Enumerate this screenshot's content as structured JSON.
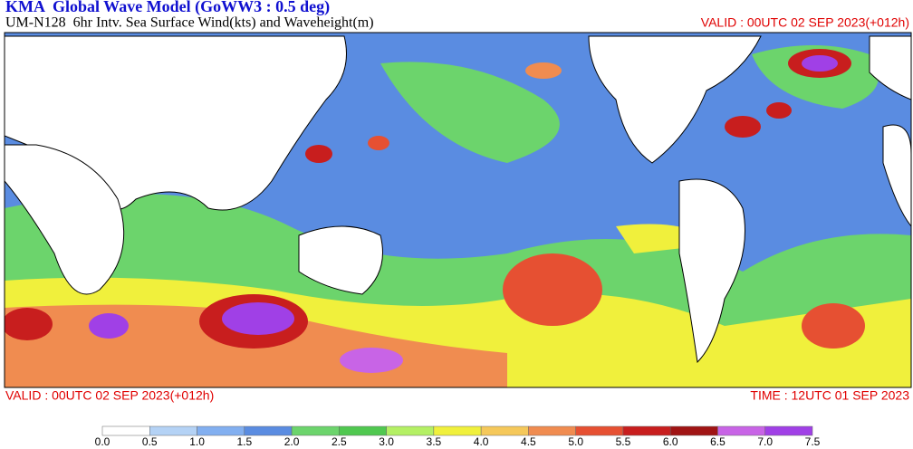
{
  "header": {
    "title": "KMA  Global Wave Model (GoWW3 : 0.5 deg)",
    "subtitle": "UM-N128  6hr Intv. Sea Surface Wind(kts) and Waveheight(m)",
    "valid_top": "VALID : 00UTC 02 SEP 2023(+012h)"
  },
  "footer": {
    "valid": "VALID : 00UTC 02 SEP 2023(+012h)",
    "time": "TIME : 12UTC 01 SEP 2023"
  },
  "colorbar": {
    "levels": [
      "0.0",
      "0.5",
      "1.0",
      "1.5",
      "2.0",
      "2.5",
      "3.0",
      "3.5",
      "4.0",
      "4.5",
      "5.0",
      "5.5",
      "6.0",
      "6.5",
      "7.0",
      "7.5"
    ]
  }
}
